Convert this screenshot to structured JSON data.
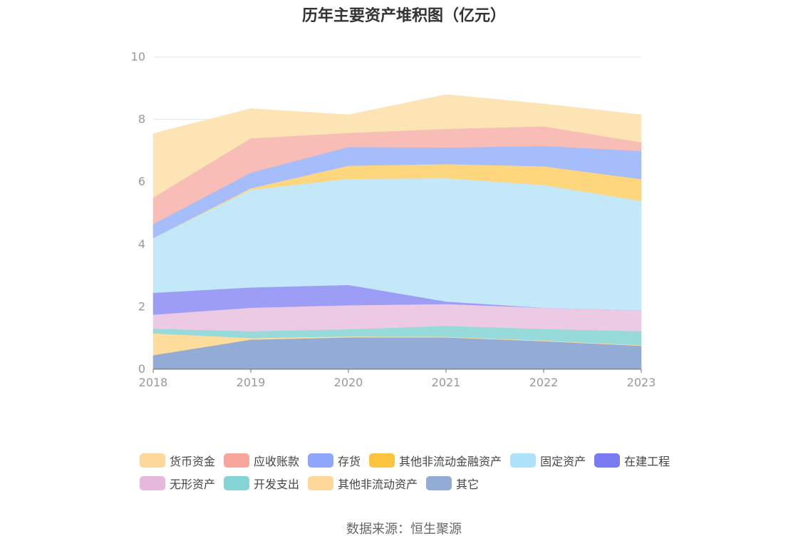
{
  "chart_data": {
    "type": "area",
    "stacked": true,
    "title": "历年主要资产堆积图（亿元）",
    "x": [
      "2018",
      "2019",
      "2020",
      "2021",
      "2022",
      "2023"
    ],
    "ylim": [
      0,
      10
    ],
    "yticks": [
      "0",
      "2",
      "4",
      "6",
      "8",
      "10"
    ],
    "grid": true,
    "legend_position": "bottom",
    "series": [
      {
        "name": "其它",
        "color": "#93acd6",
        "values": [
          0.45,
          0.95,
          1.02,
          1.02,
          0.9,
          0.75
        ]
      },
      {
        "name": "其他非流动资产",
        "color": "#fddc9c",
        "values": [
          0.7,
          0.05,
          0.03,
          0.02,
          0.02,
          0.02
        ]
      },
      {
        "name": "开发支出",
        "color": "#96dada",
        "values": [
          0.15,
          0.22,
          0.23,
          0.35,
          0.37,
          0.45
        ]
      },
      {
        "name": "无形资产",
        "color": "#eccae3",
        "values": [
          0.45,
          0.75,
          0.77,
          0.7,
          0.68,
          0.67
        ]
      },
      {
        "name": "在建工程",
        "color": "#9d9df6",
        "values": [
          0.7,
          0.65,
          0.65,
          0.08,
          0.0,
          0.0
        ]
      },
      {
        "name": "固定资产",
        "color": "#c3e8f9",
        "values": [
          1.75,
          3.13,
          3.4,
          3.95,
          3.93,
          3.5
        ]
      },
      {
        "name": "其他非流动金融资产",
        "color": "#fed67e",
        "values": [
          0.0,
          0.05,
          0.42,
          0.45,
          0.6,
          0.7
        ]
      },
      {
        "name": "存货",
        "color": "#a6bdfb",
        "values": [
          0.45,
          0.5,
          0.6,
          0.53,
          0.65,
          0.9
        ]
      },
      {
        "name": "应收账款",
        "color": "#f8bdb6",
        "values": [
          0.85,
          1.1,
          0.45,
          0.6,
          0.63,
          0.28
        ]
      },
      {
        "name": "货币资金",
        "color": "#fde4b4",
        "values": [
          2.05,
          0.95,
          0.58,
          1.1,
          0.72,
          0.88
        ]
      }
    ]
  },
  "legend": {
    "items": [
      {
        "label": "货币资金",
        "color": "#fdd89a"
      },
      {
        "label": "应收账款",
        "color": "#f8a59b"
      },
      {
        "label": "存货",
        "color": "#8fa7fb"
      },
      {
        "label": "其他非流动金融资产",
        "color": "#fcc43f"
      },
      {
        "label": "固定资产",
        "color": "#aee2fb"
      },
      {
        "label": "在建工程",
        "color": "#7a7af3"
      },
      {
        "label": "无形资产",
        "color": "#e6b8de"
      },
      {
        "label": "开发支出",
        "color": "#84d3d5"
      },
      {
        "label": "其他非流动资产",
        "color": "#fdd89a"
      },
      {
        "label": "其它",
        "color": "#93acd6"
      }
    ]
  },
  "source_note": "数据来源：恒生聚源"
}
